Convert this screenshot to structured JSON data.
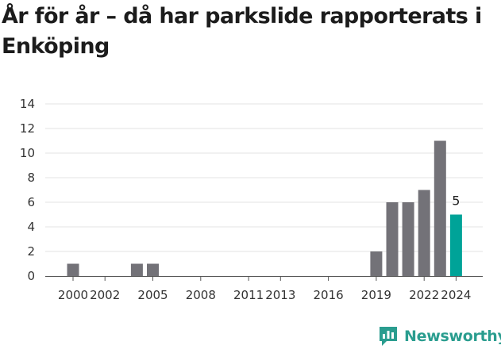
{
  "title": "År för år – då har parkslide rapporterats i Enköping",
  "brand": {
    "name": "Newsworthy",
    "icon": "newsworthy-logo-icon"
  },
  "colors": {
    "bar": "#737278",
    "highlight": "#00a398",
    "grid": "#e3e3e3",
    "axis": "#555555",
    "brand": "#2a9d8f"
  },
  "chart_data": {
    "type": "bar",
    "title": "År för år – då har parkslide rapporterats i Enköping",
    "xlabel": "",
    "ylabel": "",
    "x": [
      2000,
      2001,
      2002,
      2003,
      2004,
      2005,
      2006,
      2007,
      2008,
      2009,
      2010,
      2011,
      2012,
      2013,
      2014,
      2015,
      2016,
      2017,
      2018,
      2019,
      2020,
      2021,
      2022,
      2023,
      2024
    ],
    "values": [
      1,
      0,
      0,
      0,
      1,
      1,
      0,
      0,
      0,
      0,
      0,
      0,
      0,
      0,
      0,
      0,
      0,
      0,
      0,
      2,
      6,
      6,
      7,
      11,
      5
    ],
    "highlight_category": 2024,
    "data_labels": [
      {
        "x": 2024,
        "text": "5"
      }
    ],
    "x_tick_labels": [
      "2000",
      "2002",
      "2005",
      "2008",
      "2011",
      "2013",
      "2016",
      "2019",
      "2022",
      "2024"
    ],
    "y_ticks": [
      0,
      2,
      4,
      6,
      8,
      10,
      12,
      14
    ],
    "ylim": [
      0,
      14
    ],
    "grid": true,
    "legend": "none"
  }
}
